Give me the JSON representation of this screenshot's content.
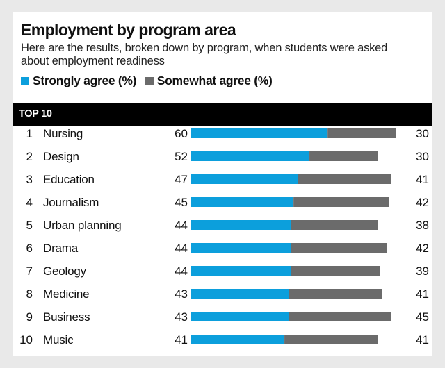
{
  "header": {
    "title": "Employment by program area",
    "subtitle": "Here are the results, broken down by program, when students were asked about employment readiness"
  },
  "legend": [
    {
      "label": "Strongly agree (%)",
      "color": "#0c9fdc"
    },
    {
      "label": "Somewhat agree (%)",
      "color": "#6b6b6b"
    }
  ],
  "section_label": "TOP 10",
  "chart_data": {
    "type": "bar",
    "stacked": true,
    "orientation": "horizontal",
    "title": "Employment by program area",
    "categories": [
      "Nursing",
      "Design",
      "Education",
      "Journalism",
      "Urban planning",
      "Drama",
      "Geology",
      "Medicine",
      "Business",
      "Music"
    ],
    "ranks": [
      "1",
      "2",
      "3",
      "4",
      "5",
      "6",
      "7",
      "8",
      "9",
      "10"
    ],
    "series": [
      {
        "name": "Strongly agree (%)",
        "color": "#0c9fdc",
        "values": [
          60,
          52,
          47,
          45,
          44,
          44,
          44,
          43,
          43,
          41
        ]
      },
      {
        "name": "Somewhat agree (%)",
        "color": "#6b6b6b",
        "values": [
          30,
          30,
          41,
          42,
          38,
          42,
          39,
          41,
          45,
          41
        ]
      }
    ],
    "xlim": [
      0,
      100
    ],
    "grid": false,
    "legend_position": "top"
  }
}
